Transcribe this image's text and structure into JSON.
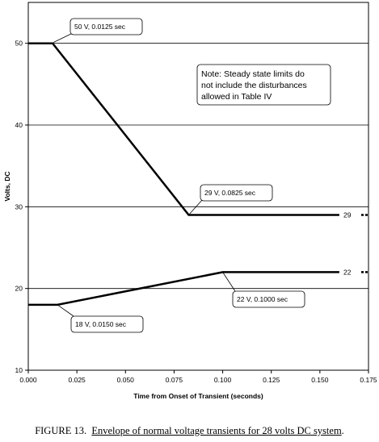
{
  "chart_data": {
    "type": "line",
    "xlabel": "Time from Onset of Transient (seconds)",
    "ylabel": "Volts, DC",
    "xlim": [
      0.0,
      0.175
    ],
    "ylim": [
      10,
      55
    ],
    "x_ticks": [
      "0.000",
      "0.025",
      "0.050",
      "0.075",
      "0.100",
      "0.125",
      "0.150",
      "0.175"
    ],
    "y_ticks": [
      "10",
      "20",
      "30",
      "40",
      "50"
    ],
    "grid": "horizontal",
    "series": [
      {
        "points": [
          [
            0.0,
            50
          ],
          [
            0.0125,
            50
          ],
          [
            0.0825,
            29
          ],
          [
            0.16,
            29
          ]
        ]
      },
      {
        "points": [
          [
            0.0,
            18
          ],
          [
            0.015,
            18
          ],
          [
            0.1,
            22
          ],
          [
            0.16,
            22
          ]
        ]
      }
    ],
    "annotations": [
      {
        "text": "50 V, 0.0125 sec",
        "x": 0.0125,
        "y": 50
      },
      {
        "text": "29 V, 0.0825 sec",
        "x": 0.0825,
        "y": 29
      },
      {
        "text": "22 V, 0.1000 sec",
        "x": 0.1,
        "y": 22
      },
      {
        "text": "18 V, 0.0150 sec",
        "x": 0.015,
        "y": 18
      }
    ],
    "end_labels": [
      {
        "text": "29",
        "y": 29
      },
      {
        "text": "22",
        "y": 22
      }
    ],
    "note": [
      "Note: Steady state limits do",
      "not include the disturbances",
      "allowed in Table IV"
    ]
  },
  "caption": {
    "prefix": "FIGURE 13.",
    "title": "Envelope of normal voltage transients for 28 volts DC system"
  }
}
